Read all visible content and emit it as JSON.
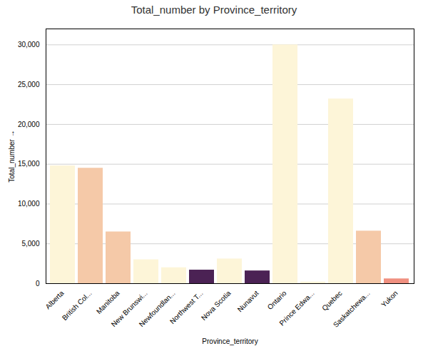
{
  "chart_data": {
    "type": "bar",
    "title": "Total_number by Province_territory",
    "xlabel": "Province_territory",
    "ylabel": "Total_number",
    "categories": [
      "Alberta",
      "British Col...",
      "Manitoba",
      "New Brunswi...",
      "Newfoundlan...",
      "Northwest T...",
      "Nova Scotia",
      "Nunavut",
      "Ontario",
      "Prince Edwa...",
      "Quebec",
      "Saskatchewa...",
      "Yukon"
    ],
    "values": [
      14800,
      14500,
      6500,
      3000,
      2000,
      1700,
      3100,
      1600,
      30000,
      200,
      23200,
      6600,
      600
    ],
    "colors": [
      "#fdf5d8",
      "#f5c9a8",
      "#f5c9a8",
      "#fdf5d8",
      "#fdf5d8",
      "#4b2254",
      "#fdf5d8",
      "#4b2254",
      "#fdf5d8",
      "#fdf5d8",
      "#fdf5d8",
      "#f5c9a8",
      "#f09080"
    ],
    "ylim": [
      0,
      32000
    ],
    "yticks": [
      0,
      {
        "value": 5000,
        "label": "5,000"
      },
      {
        "value": 10000,
        "label": "10,000"
      },
      {
        "value": 15000,
        "label": "15,000"
      },
      {
        "value": 20000,
        "label": "20,000"
      },
      {
        "value": 25000,
        "label": "25,000"
      },
      {
        "value": 30000,
        "label": "30,000"
      }
    ],
    "grid": true
  }
}
